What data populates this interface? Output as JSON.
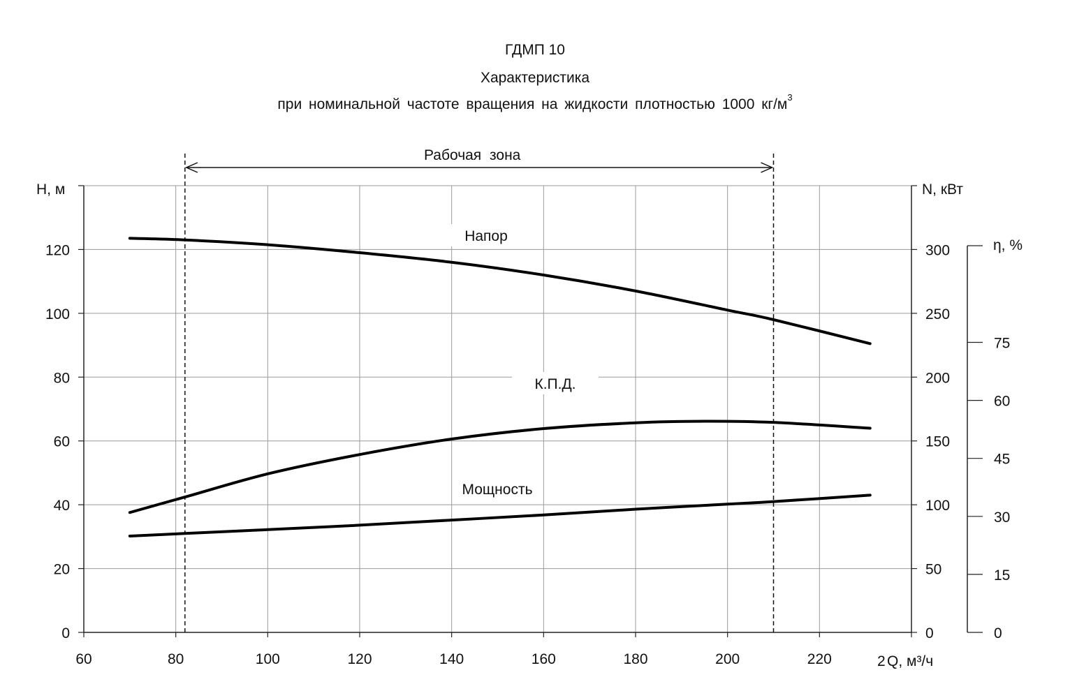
{
  "chart_data": {
    "type": "line",
    "title": "ГДМП 10",
    "subtitle_1": "Характеристика",
    "subtitle_2": "при номинальной частоте вращения на жидкости плотностью 1000 кг/м",
    "subtitle_2_sup": "3",
    "xlabel": "Q, м³/ч",
    "xlabel_prefix": "2",
    "ylabel_left": "H, м",
    "ylabel_right_power": "N, кВт",
    "ylabel_right_eff": "η, %",
    "xlim": [
      60,
      240
    ],
    "ylim_left": [
      0,
      140
    ],
    "ylim_power": [
      0,
      350
    ],
    "ylim_eff": [
      0,
      100
    ],
    "x_ticks": [
      "60",
      "80",
      "100",
      "120",
      "140",
      "160",
      "180",
      "200",
      "220"
    ],
    "y_left_ticks": [
      "0",
      "20",
      "40",
      "60",
      "80",
      "100",
      "120"
    ],
    "y_power_ticks": [
      "0",
      "50",
      "100",
      "150",
      "200",
      "250",
      "300"
    ],
    "y_eff_ticks": [
      "0",
      "15",
      "30",
      "45",
      "60",
      "75"
    ],
    "grid": true,
    "working_zone": {
      "label": "Рабочая зона",
      "x_start": 82,
      "x_end": 210
    },
    "series": [
      {
        "name": "Напор",
        "axis": "left",
        "x": [
          70,
          82,
          100,
          120,
          140,
          160,
          180,
          200,
          210,
          231
        ],
        "y": [
          123.5,
          123.0,
          121.5,
          119.0,
          116.0,
          112.0,
          107.0,
          101.0,
          98.0,
          90.5
        ]
      },
      {
        "name": "К.П.Д.",
        "axis": "eff",
        "x": [
          70,
          82,
          100,
          120,
          140,
          160,
          180,
          195,
          210,
          231
        ],
        "y": [
          31.0,
          35.0,
          41.0,
          46.0,
          50.0,
          52.7,
          54.2,
          54.6,
          54.3,
          52.8
        ]
      },
      {
        "name": "Мощность",
        "axis": "power",
        "x": [
          70,
          82,
          100,
          120,
          140,
          160,
          180,
          200,
          210,
          231
        ],
        "y": [
          75.5,
          77.5,
          80.5,
          84.0,
          88.0,
          92.0,
          96.5,
          100.5,
          102.5,
          107.5
        ]
      }
    ]
  }
}
